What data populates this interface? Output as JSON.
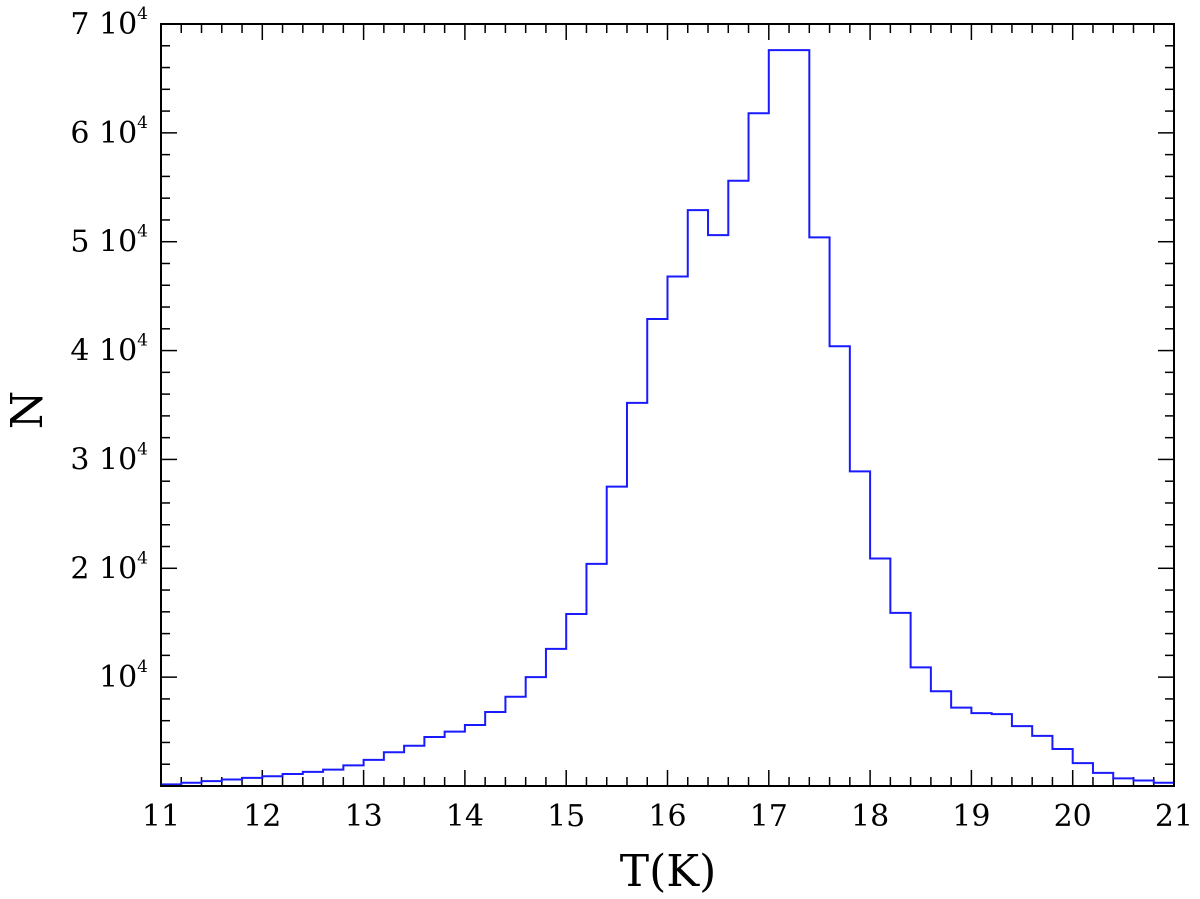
{
  "chart_data": {
    "type": "histogram",
    "xlabel": "T(K)",
    "ylabel": "N",
    "xlim": [
      11,
      21
    ],
    "ylim": [
      0,
      70000
    ],
    "x_ticks": [
      11,
      12,
      13,
      14,
      15,
      16,
      17,
      18,
      19,
      20,
      21
    ],
    "x_tick_labels": [
      "11",
      "12",
      "13",
      "14",
      "15",
      "16",
      "17",
      "18",
      "19",
      "20",
      "21"
    ],
    "y_ticks": [
      {
        "value": 10000,
        "coef": "",
        "base": "10",
        "exp": "4"
      },
      {
        "value": 20000,
        "coef": "2",
        "base": "10",
        "exp": "4"
      },
      {
        "value": 30000,
        "coef": "3",
        "base": "10",
        "exp": "4"
      },
      {
        "value": 40000,
        "coef": "4",
        "base": "10",
        "exp": "4"
      },
      {
        "value": 50000,
        "coef": "5",
        "base": "10",
        "exp": "4"
      },
      {
        "value": 60000,
        "coef": "6",
        "base": "10",
        "exp": "4"
      },
      {
        "value": 70000,
        "coef": "7",
        "base": "10",
        "exp": "4"
      }
    ],
    "bin_width": 0.2,
    "bin_start": 11.0,
    "counts": [
      150,
      300,
      450,
      600,
      750,
      900,
      1100,
      1300,
      1500,
      1900,
      2400,
      3100,
      3700,
      4500,
      5000,
      5600,
      6800,
      8200,
      10000,
      12600,
      15800,
      20400,
      27500,
      35200,
      42900,
      46800,
      52900,
      50600,
      55600,
      61800,
      67600,
      67600,
      50400,
      40400,
      28900,
      20900,
      15900,
      10900,
      8700,
      7200,
      6700,
      6600,
      5500,
      4600,
      3400,
      2100,
      1200,
      700,
      500,
      300
    ],
    "color": "#1a1aff",
    "grid": false
  }
}
